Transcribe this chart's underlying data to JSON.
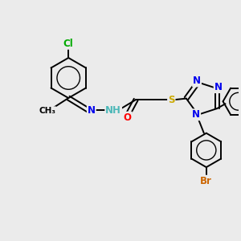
{
  "bg_color": "#ebebeb",
  "bond_color": "#000000",
  "bond_width": 1.4,
  "atom_colors": {
    "C": "#000000",
    "H": "#4db8b8",
    "N": "#0000ee",
    "O": "#ff0000",
    "S": "#ccaa00",
    "Cl": "#00aa00",
    "Br": "#cc6600"
  },
  "font_size": 8.5,
  "fig_width": 3.0,
  "fig_height": 3.0,
  "dpi": 100,
  "xlim": [
    0,
    10
  ],
  "ylim": [
    0,
    10
  ]
}
